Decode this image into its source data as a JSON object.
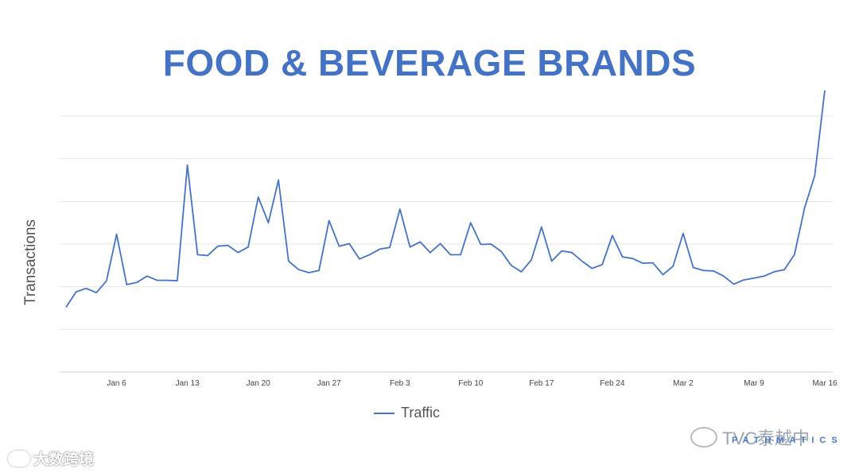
{
  "chart_data": {
    "type": "line",
    "title": "FOOD & BEVERAGE BRANDS",
    "ylabel": "Transactions",
    "xlabel": "",
    "ylim": [
      0,
      6
    ],
    "grid": true,
    "legend_position": "bottom-center",
    "x_tick_labels": [
      "Jan 6",
      "Jan 13",
      "Jan 20",
      "Jan 27",
      "Feb 3",
      "Feb 10",
      "Feb 17",
      "Feb 24",
      "Mar 2",
      "Mar 9",
      "Mar 16"
    ],
    "first_date_offset_days": -5,
    "series": [
      {
        "name": "Traffic",
        "values": [
          1.52,
          1.88,
          1.96,
          1.86,
          2.14,
          3.23,
          2.05,
          2.1,
          2.25,
          2.15,
          2.15,
          2.14,
          4.85,
          2.75,
          2.73,
          2.95,
          2.97,
          2.8,
          2.93,
          4.1,
          3.5,
          4.5,
          2.6,
          2.4,
          2.33,
          2.38,
          3.55,
          2.95,
          3.01,
          2.65,
          2.75,
          2.88,
          2.92,
          3.82,
          2.93,
          3.05,
          2.8,
          3.01,
          2.75,
          2.75,
          3.5,
          2.99,
          3.0,
          2.83,
          2.5,
          2.35,
          2.63,
          3.4,
          2.6,
          2.84,
          2.8,
          2.6,
          2.43,
          2.52,
          3.2,
          2.7,
          2.66,
          2.55,
          2.56,
          2.28,
          2.48,
          3.25,
          2.45,
          2.38,
          2.37,
          2.25,
          2.06,
          2.16,
          2.2,
          2.25,
          2.35,
          2.4,
          2.75,
          3.85,
          4.6,
          6.6
        ]
      }
    ]
  },
  "legend": {
    "label": "Traffic"
  },
  "watermarks": {
    "left": "大数跨境",
    "right": "TVC泰越中",
    "brand": "PATHMATICS"
  },
  "colors": {
    "title": "#4472c4",
    "line": "#4472c4",
    "grid": "#e4e4e4",
    "axis": "#d0d0d0"
  }
}
